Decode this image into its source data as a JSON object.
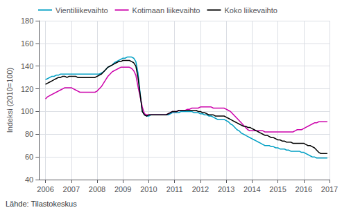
{
  "chart_data": {
    "type": "line",
    "ylabel": "Indeksi (2010=100)",
    "annotations": [
      "Lähde: Tilastokeskus"
    ],
    "xlim": [
      2005.75,
      2017.0
    ],
    "xticks": [
      2006,
      2007,
      2008,
      2009,
      2010,
      2011,
      2012,
      2013,
      2014,
      2015,
      2016,
      2017
    ],
    "ylim": [
      40,
      180
    ],
    "yticks": [
      40,
      60,
      80,
      100,
      120,
      140,
      160,
      180
    ],
    "grid": true,
    "legend": "upper left",
    "x": [
      2006,
      2006.0833333333333,
      2006.1666666666667,
      2006.25,
      2006.3333333333333,
      2006.4166666666667,
      2006.5,
      2006.5833333333333,
      2006.6666666666667,
      2006.75,
      2006.8333333333333,
      2006.9166666666667,
      2007,
      2007.0833333333333,
      2007.1666666666667,
      2007.25,
      2007.3333333333333,
      2007.4166666666667,
      2007.5,
      2007.5833333333333,
      2007.6666666666667,
      2007.75,
      2007.8333333333333,
      2007.9166666666667,
      2008,
      2008.0833333333333,
      2008.1666666666667,
      2008.25,
      2008.3333333333333,
      2008.4166666666667,
      2008.5,
      2008.5833333333333,
      2008.6666666666667,
      2008.75,
      2008.8333333333333,
      2008.9166666666667,
      2009,
      2009.0833333333333,
      2009.1666666666667,
      2009.25,
      2009.3333333333333,
      2009.4166666666667,
      2009.5,
      2009.5833333333333,
      2009.6666666666667,
      2009.75,
      2009.8333333333333,
      2009.9166666666667,
      2010,
      2010.0833333333333,
      2010.1666666666667,
      2010.25,
      2010.3333333333333,
      2010.4166666666667,
      2010.5,
      2010.5833333333333,
      2010.6666666666667,
      2010.75,
      2010.8333333333333,
      2010.9166666666667,
      2011,
      2011.0833333333333,
      2011.1666666666667,
      2011.25,
      2011.3333333333333,
      2011.4166666666667,
      2011.5,
      2011.5833333333333,
      2011.6666666666667,
      2011.75,
      2011.8333333333333,
      2011.9166666666667,
      2012,
      2012.0833333333333,
      2012.1666666666667,
      2012.25,
      2012.3333333333333,
      2012.4166666666667,
      2012.5,
      2012.5833333333333,
      2012.6666666666667,
      2012.75,
      2012.8333333333333,
      2012.9166666666667,
      2013,
      2013.0833333333333,
      2013.1666666666667,
      2013.25,
      2013.3333333333333,
      2013.4166666666667,
      2013.5,
      2013.5833333333333,
      2013.6666666666667,
      2013.75,
      2013.8333333333333,
      2013.9166666666667,
      2014,
      2014.0833333333333,
      2014.1666666666667,
      2014.25,
      2014.3333333333333,
      2014.4166666666667,
      2014.5,
      2014.5833333333333,
      2014.6666666666667,
      2014.75,
      2014.8333333333333,
      2014.9166666666667,
      2015,
      2015.0833333333333,
      2015.1666666666667,
      2015.25,
      2015.3333333333333,
      2015.4166666666667,
      2015.5,
      2015.5833333333333,
      2015.6666666666667,
      2015.75,
      2015.8333333333333,
      2015.9166666666667,
      2016,
      2016.0833333333333,
      2016.1666666666667,
      2016.25,
      2016.3333333333333,
      2016.4166666666667,
      2016.5,
      2016.5833333333333,
      2016.6666666666667,
      2016.75,
      2016.8333333333333,
      2016.9166666666667
    ],
    "series": [
      {
        "name": "Vientiliikevaihto",
        "color": "#009fc4",
        "values": [
          128,
          129,
          130,
          131,
          131,
          132,
          132,
          133,
          133,
          133,
          133,
          133,
          133,
          133,
          133,
          133,
          133,
          133,
          133,
          133,
          133,
          133,
          133,
          133,
          133,
          133,
          134,
          135,
          137,
          139,
          140,
          141,
          143,
          144,
          145,
          146,
          147,
          147,
          148,
          148,
          148,
          147,
          144,
          134,
          116,
          100,
          97,
          96,
          96,
          97,
          97,
          97,
          97,
          97,
          97,
          97,
          97,
          97,
          98,
          99,
          99,
          99,
          99,
          100,
          100,
          100,
          100,
          100,
          100,
          99,
          99,
          99,
          98,
          98,
          97,
          97,
          96,
          96,
          95,
          94,
          93,
          93,
          93,
          93,
          92,
          91,
          89,
          88,
          86,
          84,
          83,
          81,
          80,
          79,
          78,
          77,
          76,
          75,
          74,
          73,
          72,
          71,
          70,
          70,
          70,
          69,
          69,
          68,
          68,
          67,
          67,
          67,
          66,
          66,
          65,
          65,
          65,
          65,
          65,
          64,
          64,
          63,
          62,
          61,
          60,
          60,
          59,
          59,
          59,
          59,
          59,
          59
        ]
      },
      {
        "name": "Kotimaan liikevaihto",
        "color": "#cc00aa",
        "values": [
          111,
          113,
          114,
          115,
          116,
          117,
          118,
          119,
          120,
          121,
          121,
          121,
          121,
          120,
          119,
          118,
          117,
          117,
          117,
          117,
          117,
          117,
          117,
          117,
          118,
          120,
          122,
          125,
          128,
          131,
          133,
          135,
          136,
          137,
          138,
          139,
          139,
          139,
          139,
          139,
          138,
          136,
          132,
          122,
          113,
          104,
          98,
          97,
          97,
          97,
          97,
          97,
          97,
          97,
          97,
          97,
          97,
          98,
          99,
          100,
          100,
          100,
          101,
          101,
          101,
          101,
          102,
          102,
          103,
          103,
          103,
          103,
          104,
          104,
          104,
          104,
          104,
          104,
          103,
          103,
          103,
          103,
          103,
          103,
          102,
          101,
          100,
          98,
          96,
          94,
          92,
          90,
          88,
          86,
          84,
          83,
          83,
          83,
          83,
          83,
          83,
          83,
          82,
          82,
          82,
          82,
          82,
          82,
          82,
          82,
          82,
          82,
          82,
          82,
          82,
          82,
          83,
          84,
          84,
          84,
          85,
          86,
          87,
          88,
          89,
          90,
          90,
          91,
          91,
          91,
          91,
          91
        ]
      },
      {
        "name": "Koko liikevaihto",
        "color": "#000000",
        "values": [
          124,
          125,
          126,
          127,
          128,
          129,
          130,
          130,
          131,
          131,
          130,
          131,
          131,
          131,
          131,
          130,
          130,
          130,
          130,
          130,
          130,
          130,
          130,
          130,
          131,
          132,
          133,
          135,
          137,
          139,
          140,
          141,
          142,
          143,
          144,
          144,
          145,
          145,
          145,
          145,
          144,
          143,
          140,
          130,
          115,
          100,
          97,
          96,
          97,
          97,
          97,
          97,
          97,
          97,
          97,
          97,
          97,
          98,
          99,
          100,
          100,
          100,
          101,
          101,
          101,
          101,
          101,
          101,
          101,
          101,
          101,
          100,
          100,
          99,
          99,
          98,
          97,
          97,
          97,
          96,
          96,
          96,
          96,
          96,
          95,
          94,
          93,
          92,
          91,
          90,
          89,
          88,
          87,
          87,
          86,
          86,
          85,
          84,
          83,
          82,
          81,
          80,
          79,
          79,
          78,
          77,
          77,
          76,
          75,
          75,
          74,
          74,
          73,
          73,
          73,
          72,
          72,
          72,
          72,
          72,
          72,
          71,
          70,
          70,
          69,
          68,
          66,
          64,
          63,
          63,
          63,
          63
        ]
      }
    ]
  }
}
